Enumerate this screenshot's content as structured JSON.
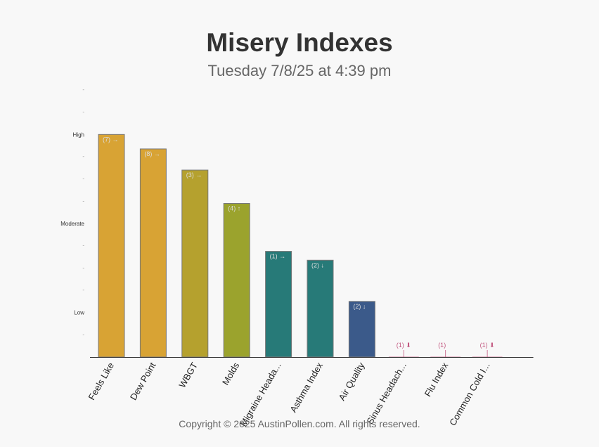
{
  "chart_data": {
    "type": "bar",
    "title": "Misery Indexes",
    "subtitle": "Tuesday 7/8/25 at 4:39 pm",
    "ylim": [
      0,
      12
    ],
    "y_level_labels": [
      {
        "value": 10,
        "label": "High"
      },
      {
        "value": 6,
        "label": "Moderate"
      },
      {
        "value": 2,
        "label": "Low"
      }
    ],
    "y_minor_tick_label": "-",
    "categories": [
      "Feels Like",
      "Dew Point",
      "WBGT",
      "Molds",
      "Migraine Heada...",
      "Asthma Index",
      "Air Quality",
      "Sinus Headach...",
      "Flu Index",
      "Common Cold I..."
    ],
    "values": [
      10,
      9.35,
      8.4,
      6.9,
      4.75,
      4.35,
      2.5,
      0,
      0,
      0
    ],
    "bar_labels": [
      "(7) →",
      "(8) →",
      "(3) →",
      "(4) ↑",
      "(1) →",
      "(2) ↓",
      "(2) ↓",
      "(1) ⬇",
      "(1)",
      "(1) ⬇"
    ],
    "colors": [
      "#d8a334",
      "#d8a334",
      "#b5a12e",
      "#9ba32d",
      "#277a78",
      "#277a78",
      "#3b5a8a",
      "#c2577f",
      "#c2577f",
      "#c2577f"
    ],
    "grid": false,
    "legend": "none"
  },
  "copyright": "Copyright © 2025 AustinPollen.com.  All rights reserved."
}
